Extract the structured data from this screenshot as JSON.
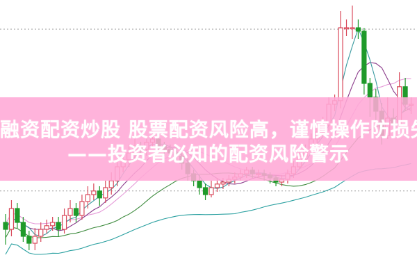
{
  "title_line1": "融资配资炒股 股票配资风险高，谨慎操作防损失",
  "title_line2": "——投资者必知的配资风险警示",
  "chart_data": {
    "type": "candlestick",
    "ylim": [
      10,
      20
    ],
    "grid": "dotted horizontal",
    "grid_levels": [
      18.95,
      13.13
    ],
    "colors": {
      "up": "#d9485a",
      "down": "#1f9a2a",
      "ma5": "#3a9aa0",
      "ma10": "#8a3a8a",
      "ma20": "#e59ad8",
      "ma30": "#3c8a3c",
      "ma60": "#2aa0a0",
      "banner": "#ffa8d6"
    },
    "candles": [
      [
        12.0,
        12.3,
        11.2,
        11.75
      ],
      [
        11.75,
        12.8,
        11.5,
        12.5
      ],
      [
        12.5,
        12.7,
        11.8,
        12.0
      ],
      [
        12.0,
        12.2,
        11.3,
        11.5
      ],
      [
        11.5,
        11.7,
        11.0,
        11.25
      ],
      [
        11.25,
        11.8,
        11.0,
        11.5
      ],
      [
        11.5,
        12.0,
        11.3,
        11.75
      ],
      [
        11.75,
        12.1,
        11.6,
        11.88
      ],
      [
        11.88,
        12.2,
        11.7,
        12.0
      ],
      [
        12.0,
        12.2,
        11.5,
        11.75
      ],
      [
        11.75,
        12.5,
        11.6,
        12.25
      ],
      [
        12.25,
        12.8,
        12.0,
        12.5
      ],
      [
        12.5,
        12.7,
        12.0,
        12.25
      ],
      [
        12.25,
        13.0,
        12.1,
        12.75
      ],
      [
        12.75,
        13.3,
        12.5,
        13.0
      ],
      [
        13.0,
        13.4,
        12.8,
        13.13
      ],
      [
        13.13,
        13.3,
        12.6,
        12.88
      ],
      [
        12.88,
        13.5,
        12.7,
        13.25
      ],
      [
        13.25,
        13.8,
        13.0,
        13.5
      ],
      [
        13.5,
        14.3,
        13.3,
        14.0
      ],
      [
        14.0,
        14.5,
        13.8,
        14.25
      ],
      [
        14.25,
        14.8,
        14.0,
        14.5
      ],
      [
        14.5,
        15.0,
        14.3,
        14.75
      ],
      [
        14.75,
        14.9,
        14.4,
        14.63
      ],
      [
        14.63,
        15.1,
        14.4,
        14.88
      ],
      [
        14.88,
        15.3,
        14.7,
        15.0
      ],
      [
        15.0,
        15.2,
        14.5,
        14.75
      ],
      [
        14.75,
        14.9,
        14.4,
        14.63
      ],
      [
        14.63,
        14.8,
        14.3,
        14.5
      ],
      [
        14.5,
        14.7,
        14.2,
        14.38
      ],
      [
        14.38,
        14.5,
        13.9,
        14.13
      ],
      [
        14.13,
        14.3,
        13.5,
        13.75
      ],
      [
        13.75,
        13.9,
        13.3,
        13.5
      ],
      [
        13.5,
        13.7,
        13.0,
        13.25
      ],
      [
        13.25,
        13.4,
        12.8,
        13.0
      ],
      [
        13.0,
        13.5,
        12.9,
        13.25
      ],
      [
        13.25,
        13.6,
        13.1,
        13.38
      ],
      [
        13.38,
        13.6,
        13.2,
        13.45
      ],
      [
        13.45,
        13.7,
        13.3,
        13.55
      ],
      [
        13.55,
        13.8,
        13.4,
        13.63
      ],
      [
        13.63,
        13.9,
        13.5,
        13.75
      ],
      [
        13.75,
        14.0,
        13.6,
        13.88
      ],
      [
        13.88,
        14.0,
        13.6,
        13.75
      ],
      [
        13.75,
        13.9,
        13.6,
        13.75
      ],
      [
        13.75,
        13.9,
        13.5,
        13.7
      ],
      [
        13.7,
        13.8,
        13.4,
        13.6
      ],
      [
        13.6,
        13.7,
        13.3,
        13.45
      ],
      [
        13.45,
        13.7,
        13.3,
        13.55
      ],
      [
        13.55,
        13.9,
        13.4,
        13.75
      ],
      [
        13.75,
        14.2,
        13.6,
        14.0
      ],
      [
        14.0,
        14.6,
        13.9,
        14.38
      ],
      [
        14.38,
        14.8,
        14.2,
        14.63
      ],
      [
        14.63,
        15.2,
        14.5,
        15.0
      ],
      [
        15.0,
        15.4,
        14.8,
        15.25
      ],
      [
        15.25,
        15.8,
        15.1,
        15.5
      ],
      [
        15.5,
        16.5,
        15.3,
        16.25
      ],
      [
        16.25,
        16.6,
        16.0,
        16.38
      ],
      [
        16.38,
        19.6,
        16.1,
        19.0
      ],
      [
        19.0,
        19.3,
        18.7,
        19.0
      ],
      [
        19.0,
        19.8,
        18.6,
        19.0
      ],
      [
        19.0,
        19.3,
        18.6,
        18.88
      ],
      [
        18.88,
        19.0,
        16.6,
        17.0
      ],
      [
        17.0,
        17.2,
        15.8,
        16.5
      ],
      [
        16.5,
        16.8,
        15.5,
        16.0
      ],
      [
        16.0,
        16.3,
        14.8,
        15.13
      ],
      [
        15.13,
        16.5,
        15.0,
        15.75
      ],
      [
        15.75,
        16.1,
        15.3,
        15.5
      ],
      [
        15.5,
        17.4,
        15.2,
        16.88
      ],
      [
        16.88,
        17.2,
        16.0,
        16.25
      ],
      [
        16.25,
        16.5,
        15.9,
        16.25
      ]
    ]
  }
}
